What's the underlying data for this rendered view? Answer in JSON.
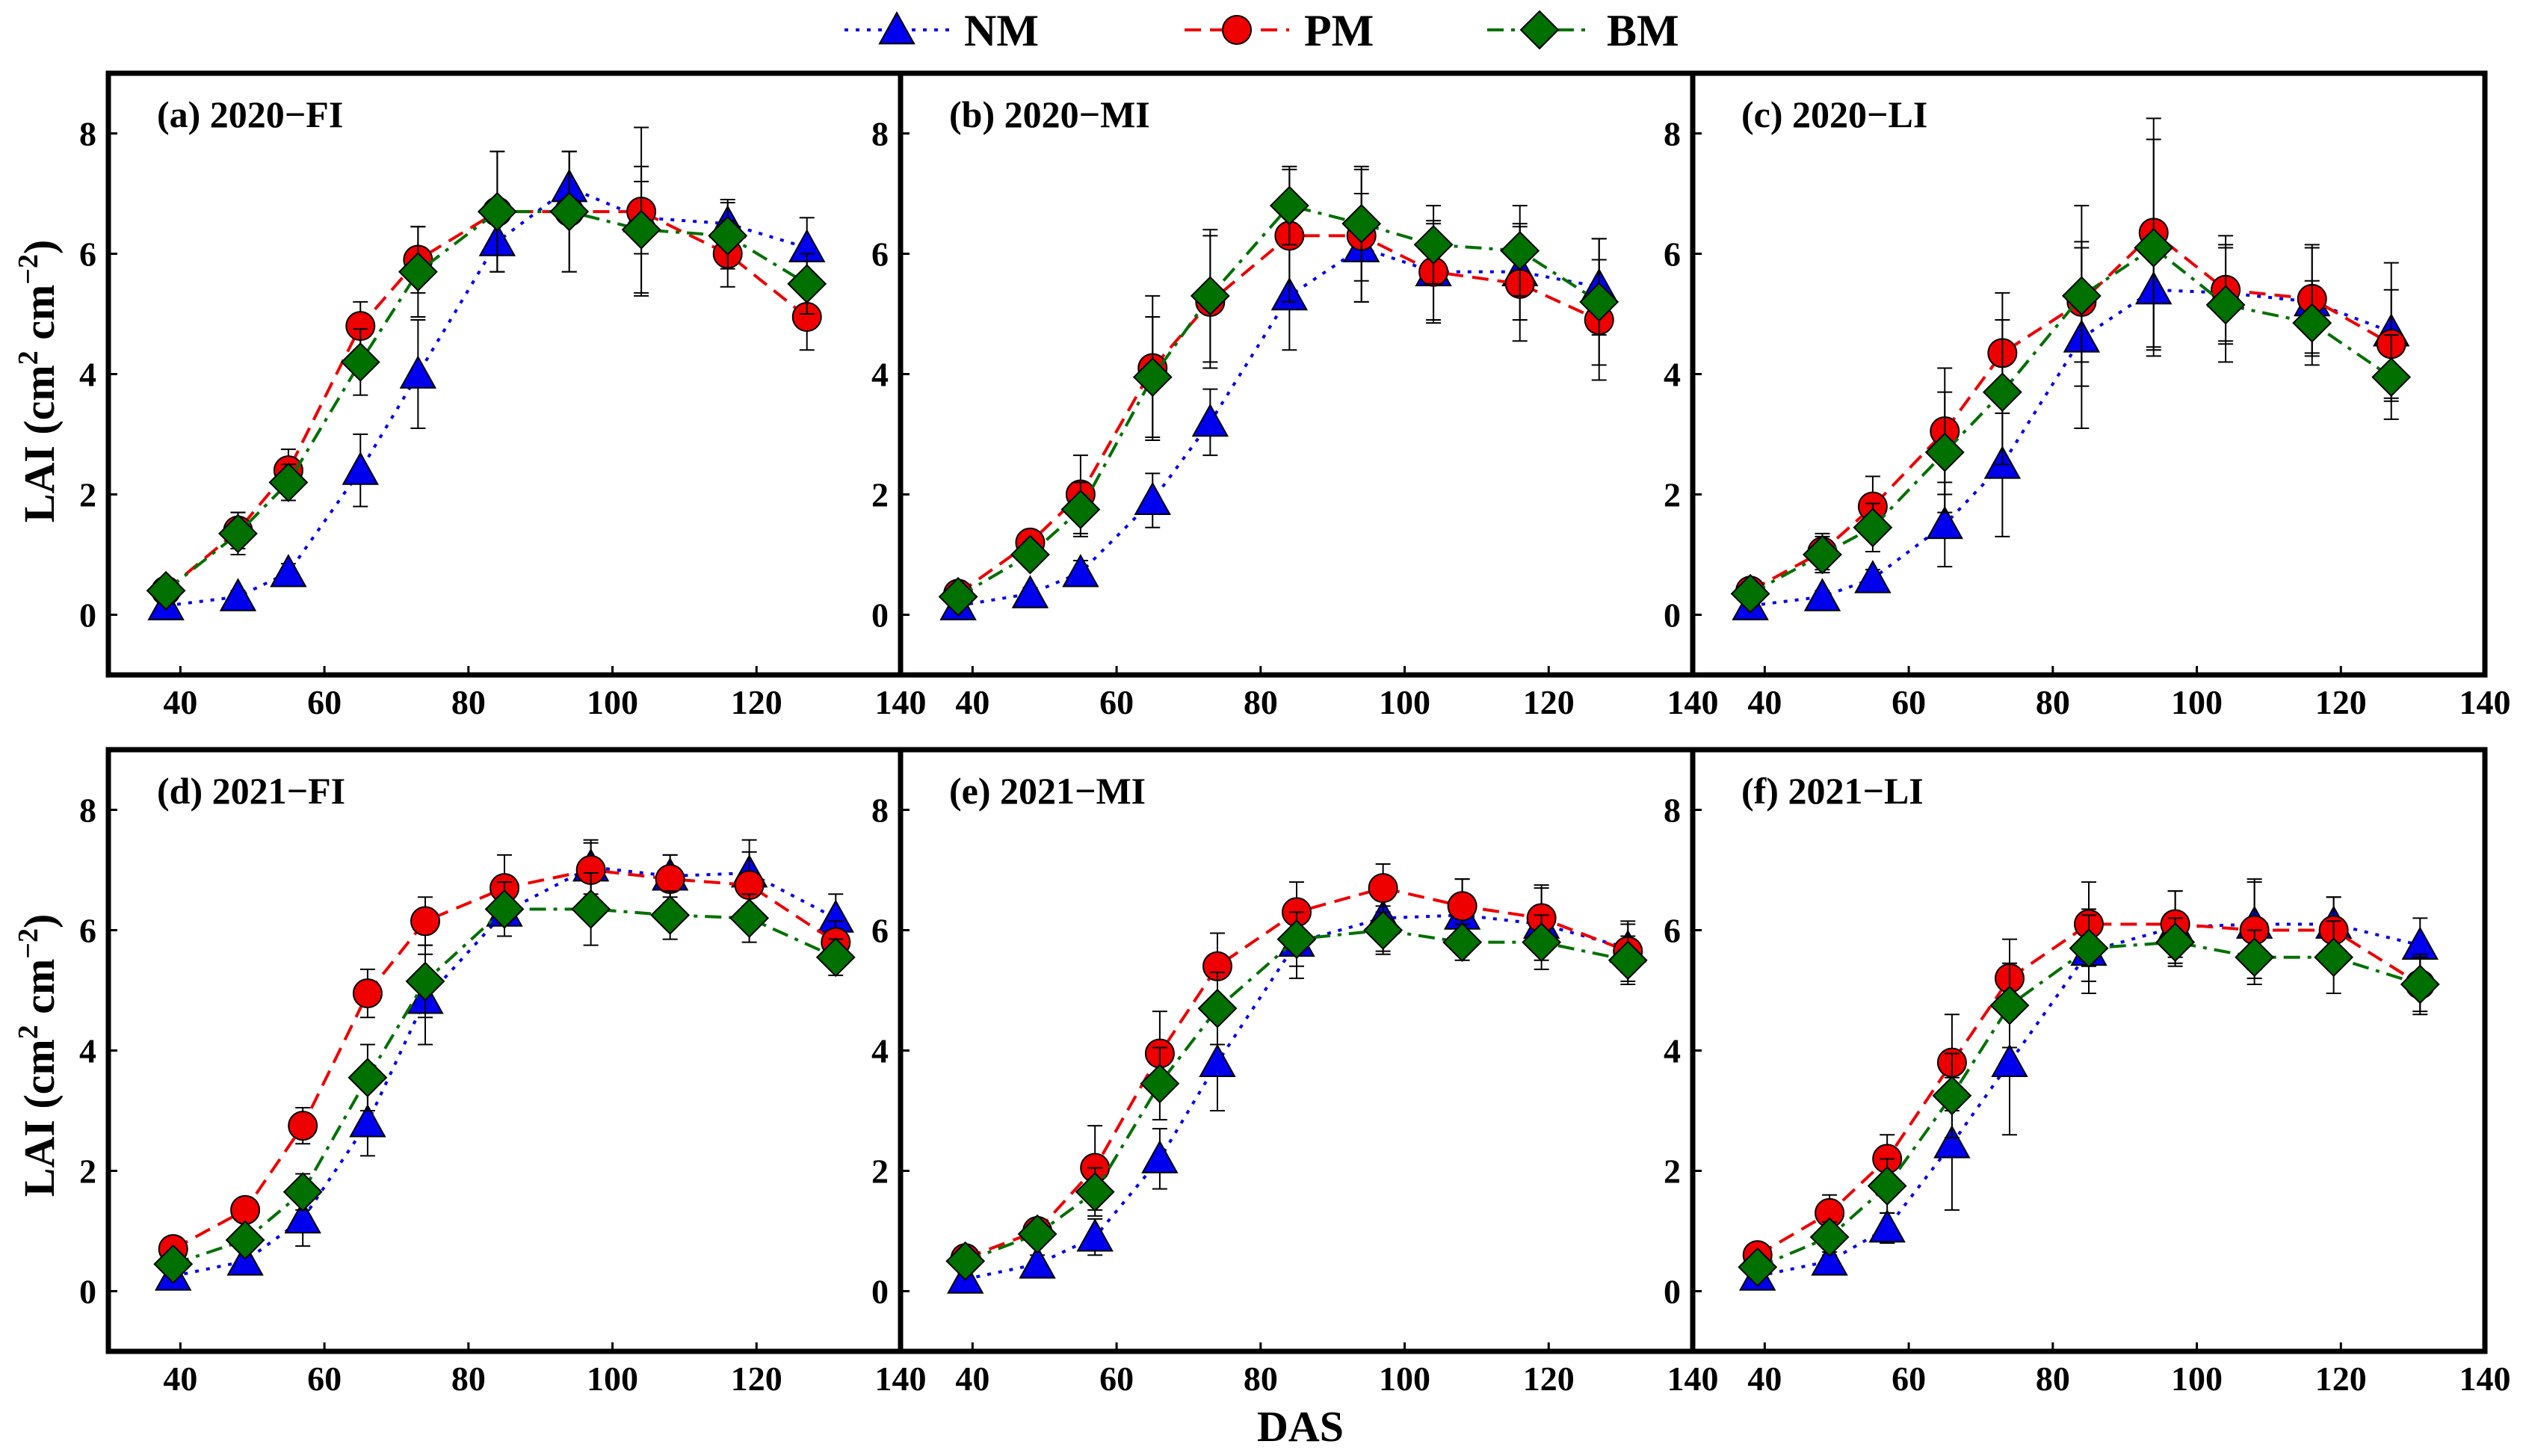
{
  "legend": {
    "items": [
      {
        "name": "NM",
        "color": "#0000ee",
        "marker": "triangle",
        "dash": "dotted"
      },
      {
        "name": "PM",
        "color": "#ee0000",
        "marker": "circle",
        "dash": "dashed"
      },
      {
        "name": "BM",
        "color": "#007000",
        "marker": "diamond",
        "dash": "dash-dot"
      }
    ]
  },
  "axes": {
    "xlabel": "DAS",
    "ylabel_main": "LAI (cm",
    "ylabel_sup1": "2",
    "ylabel_mid": " cm",
    "ylabel_sup2": "−2",
    "ylabel_end": ")",
    "xlim": [
      30,
      140
    ],
    "ylim": [
      -1,
      9
    ],
    "xticks": [
      40,
      60,
      80,
      100,
      120,
      140
    ],
    "yticks": [
      0,
      2,
      4,
      6,
      8
    ]
  },
  "chart_data": [
    {
      "type": "line",
      "title": "(a) 2020−FI",
      "x": [
        38,
        48,
        55,
        65,
        73,
        84,
        94,
        104,
        116,
        127
      ],
      "series": [
        {
          "name": "NM",
          "values": [
            0.15,
            0.3,
            0.7,
            2.4,
            4.0,
            6.2,
            7.1,
            6.6,
            6.5,
            6.1
          ],
          "err": [
            0.1,
            0.1,
            0.15,
            0.6,
            0.9,
            0.5,
            0.6,
            0.6,
            0.4,
            0.5
          ]
        },
        {
          "name": "PM",
          "values": [
            0.4,
            1.4,
            2.4,
            4.8,
            5.9,
            6.7,
            6.7,
            6.7,
            6.0,
            4.95
          ],
          "err": [
            0.1,
            0.3,
            0.35,
            0.4,
            0.55,
            1.0,
            1.0,
            1.4,
            0.55,
            0.55
          ]
        },
        {
          "name": "BM",
          "values": [
            0.4,
            1.35,
            2.2,
            4.2,
            5.7,
            6.7,
            6.7,
            6.4,
            6.3,
            5.5
          ],
          "err": [
            0.1,
            0.35,
            0.3,
            0.55,
            0.75,
            1.0,
            1.0,
            1.05,
            0.55,
            0.5
          ]
        }
      ]
    },
    {
      "type": "line",
      "title": "(b) 2020−MI",
      "x": [
        38,
        48,
        55,
        65,
        73,
        84,
        94,
        104,
        116,
        127
      ],
      "series": [
        {
          "name": "NM",
          "values": [
            0.15,
            0.35,
            0.7,
            1.9,
            3.2,
            5.3,
            6.1,
            5.7,
            5.7,
            5.45
          ],
          "err": [
            0.1,
            0.1,
            0.2,
            0.45,
            0.55,
            0.9,
            0.9,
            0.8,
            0.8,
            0.8
          ]
        },
        {
          "name": "PM",
          "values": [
            0.35,
            1.2,
            2.0,
            4.1,
            5.2,
            6.3,
            6.3,
            5.7,
            5.5,
            4.9
          ],
          "err": [
            0.1,
            0.2,
            0.65,
            1.2,
            1.1,
            1.1,
            1.1,
            0.85,
            0.95,
            1.0
          ]
        },
        {
          "name": "BM",
          "values": [
            0.3,
            1.0,
            1.75,
            3.95,
            5.3,
            6.8,
            6.5,
            6.15,
            6.05,
            5.2
          ],
          "err": [
            0.1,
            0.2,
            0.45,
            1.0,
            1.1,
            0.65,
            0.95,
            0.65,
            0.75,
            1.05
          ]
        }
      ]
    },
    {
      "type": "line",
      "title": "(c) 2020−LI",
      "x": [
        38,
        48,
        55,
        65,
        73,
        84,
        94,
        104,
        116,
        127
      ],
      "series": [
        {
          "name": "NM",
          "values": [
            0.15,
            0.3,
            0.6,
            1.5,
            2.5,
            4.6,
            5.4,
            5.35,
            5.2,
            4.7
          ],
          "err": [
            0.05,
            0.1,
            0.15,
            0.7,
            1.2,
            1.5,
            1.0,
            0.8,
            0.9,
            1.15
          ]
        },
        {
          "name": "PM",
          "values": [
            0.4,
            1.05,
            1.8,
            3.05,
            4.35,
            5.2,
            6.35,
            5.4,
            5.25,
            4.5
          ],
          "err": [
            0.1,
            0.3,
            0.5,
            1.05,
            1.0,
            1.0,
            1.9,
            0.9,
            0.9,
            0.9
          ]
        },
        {
          "name": "BM",
          "values": [
            0.35,
            1.0,
            1.45,
            2.7,
            3.7,
            5.3,
            6.1,
            5.15,
            4.85,
            3.95
          ],
          "err": [
            0.1,
            0.3,
            0.4,
            1.0,
            1.2,
            1.5,
            1.8,
            0.95,
            0.7,
            0.7
          ]
        }
      ]
    },
    {
      "type": "line",
      "title": "(d) 2021−FI",
      "x": [
        39,
        49,
        57,
        66,
        74,
        85,
        97,
        108,
        119,
        131
      ],
      "series": [
        {
          "name": "NM",
          "values": [
            0.25,
            0.5,
            1.2,
            2.8,
            4.85,
            6.3,
            7.05,
            6.9,
            6.95,
            6.2
          ],
          "err": [
            0.1,
            0.15,
            0.45,
            0.55,
            0.75,
            0.4,
            0.45,
            0.35,
            0.55,
            0.4
          ]
        },
        {
          "name": "PM",
          "values": [
            0.7,
            1.35,
            2.75,
            4.95,
            6.15,
            6.7,
            7.0,
            6.85,
            6.75,
            5.8
          ],
          "err": [
            0.1,
            0.15,
            0.3,
            0.4,
            0.4,
            0.55,
            0.45,
            0.4,
            0.55,
            0.35
          ]
        },
        {
          "name": "BM",
          "values": [
            0.45,
            0.85,
            1.65,
            3.55,
            5.15,
            6.35,
            6.35,
            6.25,
            6.2,
            5.55
          ],
          "err": [
            0.1,
            0.15,
            0.3,
            0.55,
            0.6,
            0.45,
            0.6,
            0.4,
            0.4,
            0.3
          ]
        }
      ]
    },
    {
      "type": "line",
      "title": "(e) 2021−MI",
      "x": [
        39,
        49,
        57,
        66,
        74,
        85,
        97,
        108,
        119,
        131
      ],
      "series": [
        {
          "name": "NM",
          "values": [
            0.2,
            0.45,
            0.9,
            2.2,
            3.8,
            5.8,
            6.2,
            6.25,
            6.1,
            5.7
          ],
          "err": [
            0.1,
            0.15,
            0.3,
            0.5,
            0.8,
            0.6,
            0.55,
            0.6,
            0.6,
            0.4
          ]
        },
        {
          "name": "PM",
          "values": [
            0.55,
            1.0,
            2.05,
            3.95,
            5.4,
            6.3,
            6.7,
            6.4,
            6.2,
            5.65
          ],
          "err": [
            0.1,
            0.15,
            0.7,
            0.7,
            0.55,
            0.5,
            0.4,
            0.45,
            0.55,
            0.5
          ]
        },
        {
          "name": "BM",
          "values": [
            0.5,
            0.95,
            1.65,
            3.45,
            4.7,
            5.85,
            6.0,
            5.8,
            5.8,
            5.5
          ],
          "err": [
            0.1,
            0.15,
            0.4,
            0.6,
            0.6,
            0.45,
            0.4,
            0.3,
            0.45,
            0.4
          ]
        }
      ]
    },
    {
      "type": "line",
      "title": "(f) 2021−LI",
      "x": [
        39,
        49,
        57,
        66,
        74,
        85,
        97,
        108,
        119,
        131
      ],
      "series": [
        {
          "name": "NM",
          "values": [
            0.25,
            0.5,
            1.05,
            2.45,
            3.8,
            5.65,
            6.05,
            6.1,
            6.1,
            5.75
          ],
          "err": [
            0.1,
            0.1,
            0.25,
            1.1,
            1.2,
            0.7,
            0.6,
            0.75,
            0.45,
            0.45
          ]
        },
        {
          "name": "PM",
          "values": [
            0.6,
            1.3,
            2.2,
            3.8,
            5.2,
            6.1,
            6.1,
            6.0,
            6.0,
            5.1
          ],
          "err": [
            0.1,
            0.3,
            0.4,
            0.8,
            0.65,
            0.7,
            0.55,
            0.8,
            0.55,
            0.45
          ]
        },
        {
          "name": "BM",
          "values": [
            0.4,
            0.9,
            1.75,
            3.25,
            4.75,
            5.7,
            5.8,
            5.55,
            5.55,
            5.1
          ],
          "err": [
            0.15,
            0.25,
            0.45,
            0.7,
            0.7,
            0.55,
            0.4,
            0.45,
            0.6,
            0.5
          ]
        }
      ]
    }
  ]
}
